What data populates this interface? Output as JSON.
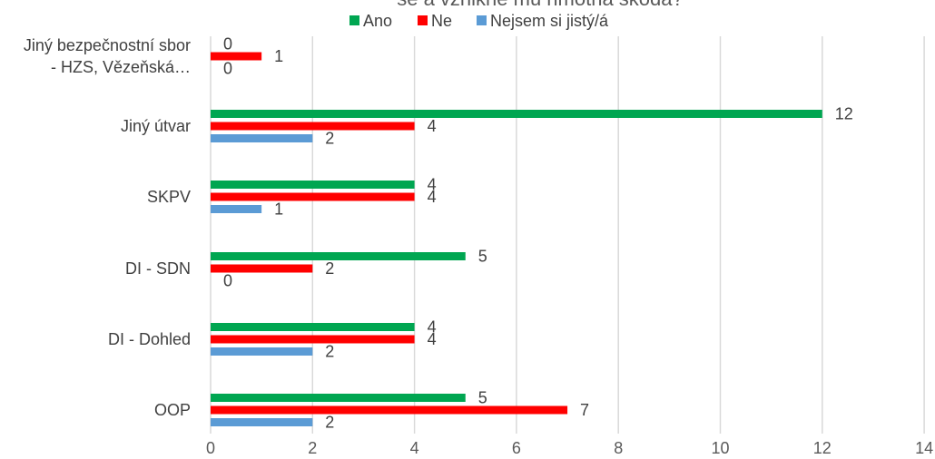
{
  "chart_data": {
    "type": "bar",
    "orientation": "horizontal",
    "title": "se a vznikne mu hmotná škoda?",
    "categories": [
      "Jiný bezpečnostní sbor - HZS, Vězeňská…",
      "Jiný útvar",
      "SKPV",
      "DI - SDN",
      "DI - Dohled",
      "OOP"
    ],
    "category_lines": [
      [
        "Jiný bezpečnostní sbor",
        "- HZS, Vězeňská…"
      ],
      [
        "Jiný útvar"
      ],
      [
        "SKPV"
      ],
      [
        "DI - SDN"
      ],
      [
        "DI - Dohled"
      ],
      [
        "OOP"
      ]
    ],
    "series": [
      {
        "name": "Ano",
        "color": "#00A651",
        "values": [
          0,
          12,
          4,
          5,
          4,
          5
        ]
      },
      {
        "name": "Ne",
        "color": "#FF0000",
        "values": [
          1,
          4,
          4,
          2,
          4,
          7
        ]
      },
      {
        "name": "Nejsem si jistý/á",
        "color": "#5B9BD5",
        "values": [
          0,
          2,
          1,
          0,
          2,
          2
        ]
      }
    ],
    "xlim": [
      0,
      14
    ],
    "xticks": [
      "0",
      "2",
      "4",
      "6",
      "8",
      "10",
      "12",
      "14"
    ],
    "grid": true,
    "legend_position": "top"
  }
}
